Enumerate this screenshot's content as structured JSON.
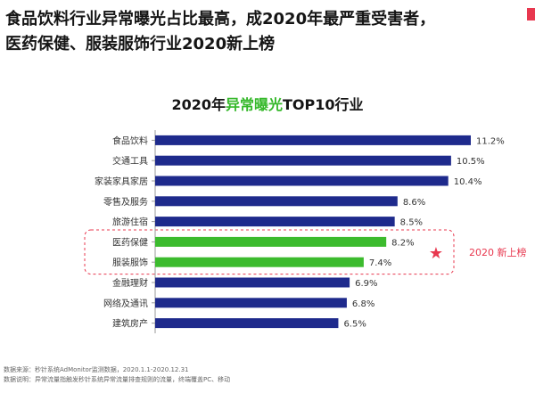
{
  "headline": {
    "line1": "食品饮料行业异常曝光占比最高，成2020年最严重受害者，",
    "line2": "医药保健、服装服饰行业2020新上榜"
  },
  "chart_data": {
    "type": "bar",
    "orientation": "horizontal",
    "title_prefix": "2020年",
    "title_highlight": "异常曝光",
    "title_suffix": "TOP10行业",
    "categories": [
      "食品饮料",
      "交通工具",
      "家装家具家居",
      "零售及服务",
      "旅游住宿",
      "医药保健",
      "服装服饰",
      "金融理财",
      "网络及通讯",
      "建筑房产"
    ],
    "values": [
      11.2,
      10.5,
      10.4,
      8.6,
      8.5,
      8.2,
      7.4,
      6.9,
      6.8,
      6.5
    ],
    "value_labels": [
      "11.2%",
      "10.5%",
      "10.4%",
      "8.6%",
      "8.5%",
      "8.2%",
      "7.4%",
      "6.9%",
      "6.8%",
      "6.5%"
    ],
    "highlighted": [
      5,
      6
    ],
    "annotation": "2020 新上榜",
    "xlim": [
      0,
      11.2
    ],
    "grid": false,
    "colors": {
      "bar": "#1e2a8c",
      "highlight": "#3cbb2e",
      "accent": "#e8384f",
      "axis": "#999999"
    }
  },
  "footnotes": {
    "source": "数据来源：秒针系统AdMonitor监测数据，2020.1.1-2020.12.31",
    "note": "数据说明：异常流量指触发秒针系统异常流量排查规则的流量，终端覆盖PC、移动"
  }
}
